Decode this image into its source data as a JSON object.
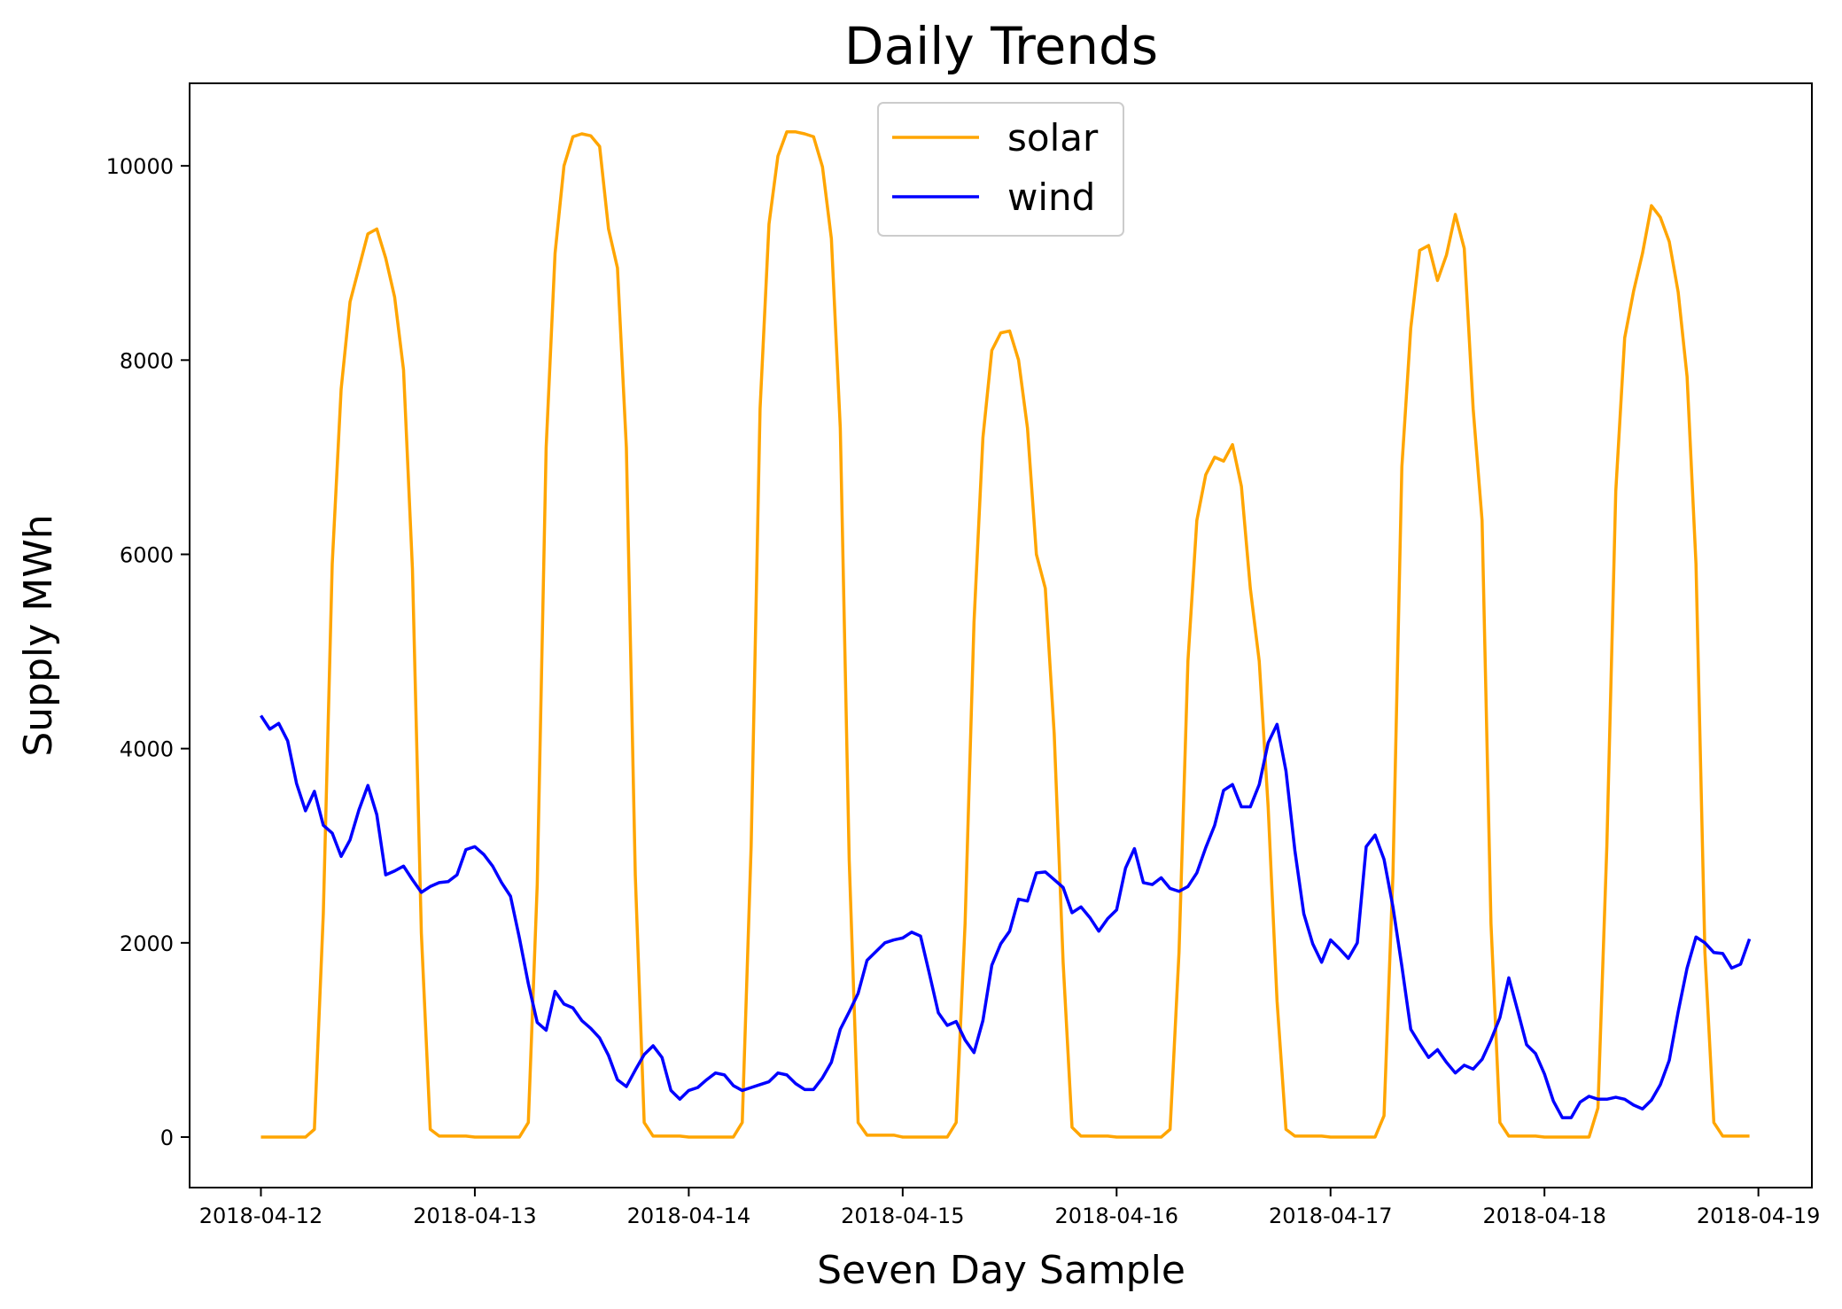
{
  "chart_data": {
    "type": "line",
    "title": "Daily Trends",
    "xlabel": "Seven Day Sample",
    "ylabel": "Supply MWh",
    "x_start": "2018-04-12T00:00",
    "x_step_hours": 1,
    "xlim": [
      "2018-04-11T16:00",
      "2018-04-19T06:00"
    ],
    "ylim": [
      -520,
      10850
    ],
    "x_ticks": [
      "2018-04-12",
      "2018-04-13",
      "2018-04-14",
      "2018-04-15",
      "2018-04-16",
      "2018-04-17",
      "2018-04-18",
      "2018-04-19"
    ],
    "y_ticks": [
      0,
      2000,
      4000,
      6000,
      8000,
      10000
    ],
    "grid": false,
    "legend": "upper center",
    "series": [
      {
        "name": "solar",
        "color": "#FFA500",
        "values": [
          0,
          0,
          0,
          0,
          0,
          0,
          80,
          2300,
          5900,
          7700,
          8600,
          8950,
          9300,
          9350,
          9050,
          8650,
          7900,
          5850,
          2100,
          80,
          10,
          10,
          10,
          10,
          0,
          0,
          0,
          0,
          0,
          0,
          150,
          2600,
          7100,
          9100,
          10000,
          10300,
          10330,
          10310,
          10200,
          9350,
          8950,
          7100,
          2700,
          150,
          10,
          10,
          10,
          10,
          0,
          0,
          0,
          0,
          0,
          0,
          150,
          3000,
          7500,
          9400,
          10100,
          10350,
          10350,
          10330,
          10300,
          9990,
          9250,
          7300,
          2850,
          150,
          20,
          20,
          20,
          20,
          0,
          0,
          0,
          0,
          0,
          0,
          150,
          2200,
          5300,
          7200,
          8100,
          8280,
          8300,
          8000,
          7300,
          6000,
          5650,
          4150,
          1800,
          100,
          10,
          10,
          10,
          10,
          0,
          0,
          0,
          0,
          0,
          0,
          80,
          1900,
          4900,
          6350,
          6820,
          7000,
          6960,
          7130,
          6700,
          5650,
          4900,
          3400,
          1400,
          80,
          10,
          10,
          10,
          10,
          0,
          0,
          0,
          0,
          0,
          0,
          220,
          2700,
          6900,
          8330,
          9130,
          9180,
          8820,
          9080,
          9500,
          9150,
          7500,
          6350,
          2200,
          150,
          10,
          10,
          10,
          10,
          0,
          0,
          0,
          0,
          0,
          0,
          300,
          3000,
          6650,
          8230,
          8710,
          9100,
          9590,
          9470,
          9220,
          8700,
          7830,
          5900,
          1900,
          150,
          10,
          10,
          10,
          10
        ]
      },
      {
        "name": "wind",
        "color": "#0000FF",
        "values": [
          4340,
          4200,
          4260,
          4080,
          3640,
          3360,
          3560,
          3210,
          3130,
          2890,
          3060,
          3370,
          3620,
          3320,
          2700,
          2740,
          2790,
          2650,
          2520,
          2580,
          2620,
          2630,
          2700,
          2960,
          2990,
          2910,
          2790,
          2620,
          2480,
          2050,
          1580,
          1180,
          1100,
          1500,
          1370,
          1330,
          1200,
          1120,
          1020,
          840,
          590,
          520,
          690,
          850,
          940,
          820,
          480,
          390,
          480,
          510,
          590,
          660,
          640,
          530,
          480,
          510,
          540,
          570,
          660,
          640,
          550,
          490,
          490,
          610,
          770,
          1110,
          1290,
          1480,
          1820,
          1910,
          2000,
          2030,
          2050,
          2110,
          2070,
          1680,
          1280,
          1150,
          1190,
          1000,
          870,
          1200,
          1770,
          1990,
          2120,
          2450,
          2430,
          2720,
          2730,
          2650,
          2570,
          2310,
          2370,
          2260,
          2120,
          2250,
          2340,
          2770,
          2970,
          2620,
          2600,
          2670,
          2560,
          2530,
          2580,
          2720,
          2980,
          3210,
          3570,
          3630,
          3400,
          3400,
          3630,
          4060,
          4250,
          3770,
          2950,
          2300,
          1990,
          1800,
          2030,
          1940,
          1840,
          2000,
          2990,
          3110,
          2860,
          2370,
          1760,
          1110,
          960,
          820,
          900,
          770,
          660,
          740,
          700,
          800,
          1000,
          1230,
          1640,
          1300,
          950,
          860,
          650,
          370,
          200,
          200,
          360,
          420,
          390,
          390,
          410,
          390,
          330,
          290,
          380,
          540,
          790,
          1290,
          1740,
          2060,
          2000,
          1900,
          1890,
          1740,
          1780,
          2040
        ]
      }
    ]
  }
}
